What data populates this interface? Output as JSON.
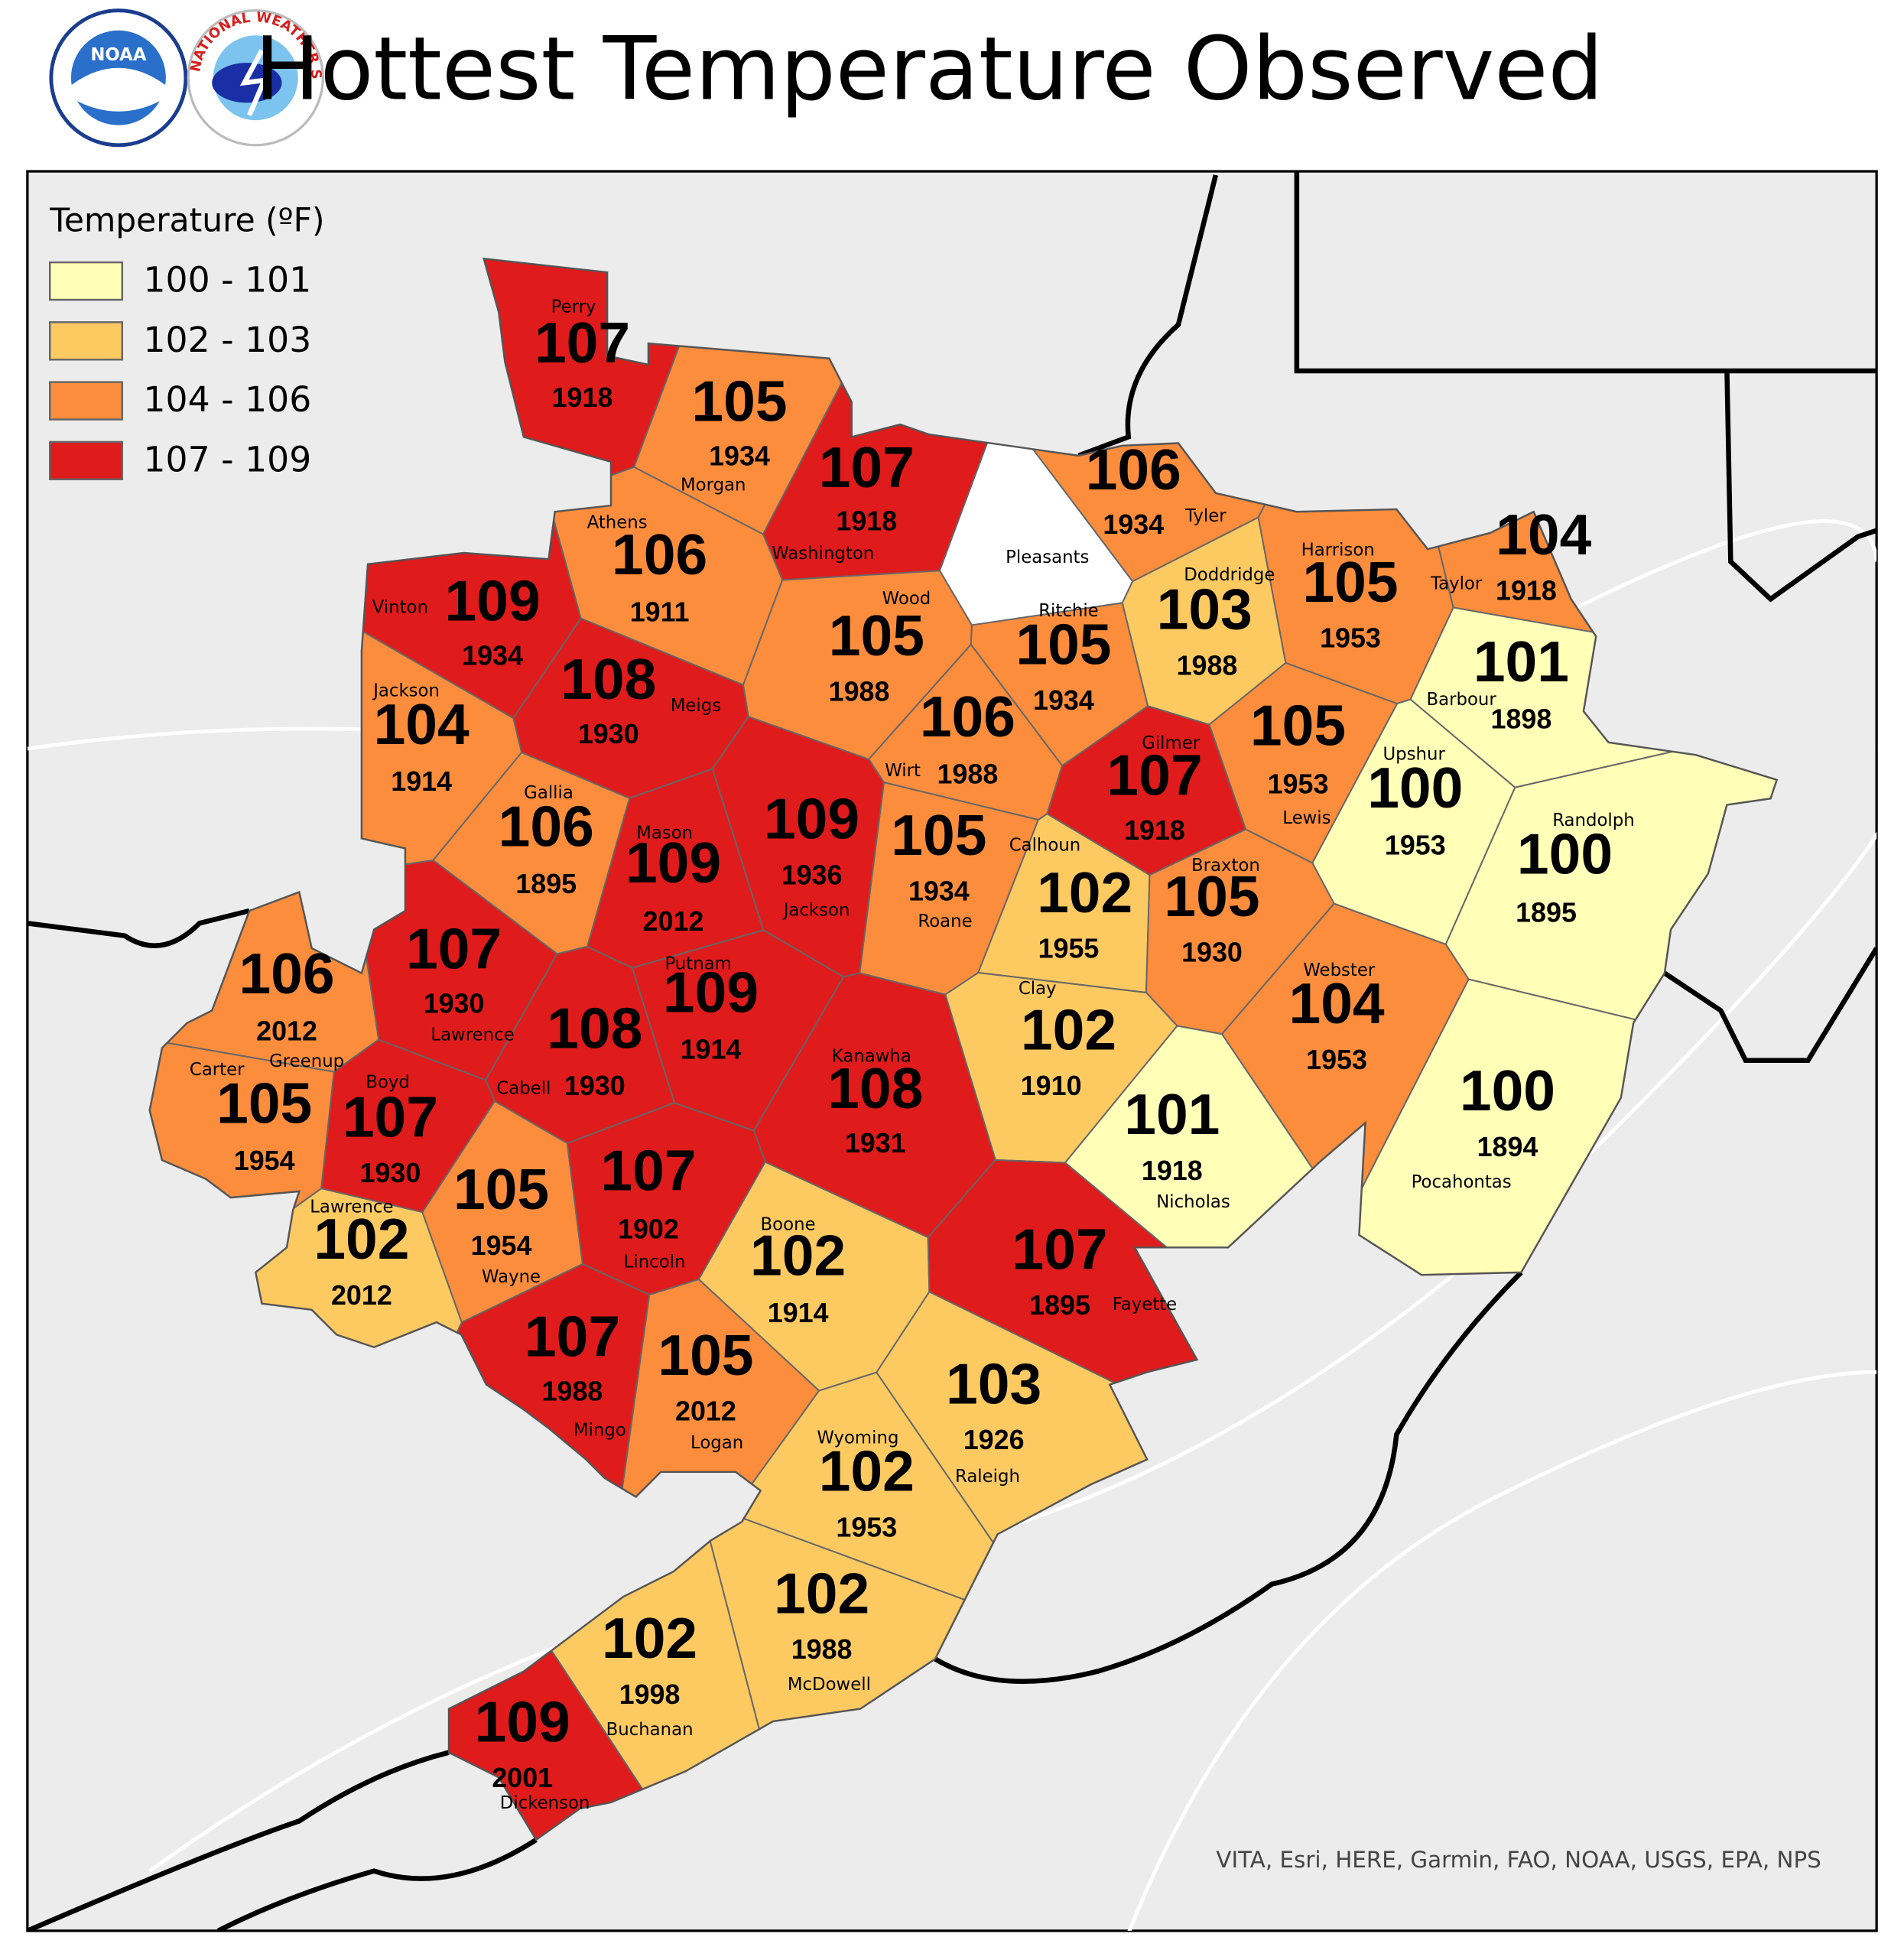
{
  "header": {
    "title": "Hottest Temperature Observed",
    "noaa_logo": "NOAA",
    "nws_logo": "NATIONAL WEATHER SERVICE"
  },
  "legend": {
    "title": "Temperature (ºF)",
    "items": [
      {
        "label": "100 - 101",
        "color": "#ffffb8"
      },
      {
        "label": "102 - 103",
        "color": "#fdca62"
      },
      {
        "label": "104 - 106",
        "color": "#fb8d3d"
      },
      {
        "label": "107 - 109",
        "color": "#e01b1c"
      }
    ]
  },
  "counties": [
    {
      "name": "Perry",
      "temperature": 107,
      "year": 1918,
      "color": "#e01b1c"
    },
    {
      "name": "Morgan",
      "temperature": 105,
      "year": 1934,
      "color": "#fb8d3d"
    },
    {
      "name": "Washington",
      "temperature": 107,
      "year": 1918,
      "color": "#e01b1c"
    },
    {
      "name": "Tyler",
      "temperature": 106,
      "year": 1934,
      "color": "#fb8d3d"
    },
    {
      "name": "Pleasants",
      "color": "#ffffff"
    },
    {
      "name": "Athens",
      "temperature": 106,
      "year": 1911,
      "color": "#fb8d3d"
    },
    {
      "name": "Vinton",
      "temperature": 109,
      "year": 1934,
      "color": "#e01b1c"
    },
    {
      "name": "Wood",
      "temperature": 105,
      "year": 1988,
      "color": "#fb8d3d"
    },
    {
      "name": "Ritchie",
      "temperature": 105,
      "year": 1934,
      "color": "#fb8d3d"
    },
    {
      "name": "Doddridge",
      "temperature": 103,
      "year": 1988,
      "color": "#fdca62"
    },
    {
      "name": "Harrison",
      "temperature": 105,
      "year": 1953,
      "color": "#fb8d3d"
    },
    {
      "name": "Taylor",
      "temperature": 104,
      "year": 1918,
      "color": "#fb8d3d"
    },
    {
      "name": "Barbour",
      "temperature": 101,
      "year": 1898,
      "color": "#ffffb8"
    },
    {
      "name": "Meigs",
      "temperature": 108,
      "year": 1930,
      "color": "#e01b1c"
    },
    {
      "name": "Jackson",
      "temperature": 104,
      "year": 1914,
      "color": "#fb8d3d"
    },
    {
      "name": "Wirt",
      "temperature": 106,
      "year": 1988,
      "color": "#fb8d3d"
    },
    {
      "name": "Gilmer",
      "temperature": 107,
      "year": 1918,
      "color": "#e01b1c"
    },
    {
      "name": "Lewis",
      "temperature": 105,
      "year": 1953,
      "color": "#fb8d3d"
    },
    {
      "name": "Upshur",
      "temperature": 100,
      "year": 1953,
      "color": "#ffffb8"
    },
    {
      "name": "Randolph",
      "temperature": 100,
      "year": 1895,
      "color": "#ffffb8"
    },
    {
      "name": "Gallia",
      "temperature": 106,
      "year": 1895,
      "color": "#fb8d3d"
    },
    {
      "name": "Mason",
      "temperature": 109,
      "year": 2012,
      "color": "#e01b1c"
    },
    {
      "name": "Jackson",
      "temperature": 109,
      "year": 1936,
      "color": "#e01b1c"
    },
    {
      "name": "Roane",
      "temperature": 105,
      "year": 1934,
      "color": "#fb8d3d"
    },
    {
      "name": "Calhoun",
      "temperature": 102,
      "year": 1955,
      "color": "#fdca62"
    },
    {
      "name": "Braxton",
      "temperature": 105,
      "year": 1930,
      "color": "#fb8d3d"
    },
    {
      "name": "Lawrence",
      "temperature": 107,
      "year": 1930,
      "color": "#e01b1c"
    },
    {
      "name": "Greenup",
      "temperature": 106,
      "year": 2012,
      "color": "#fb8d3d"
    },
    {
      "name": "Putnam",
      "temperature": 109,
      "year": 1914,
      "color": "#e01b1c"
    },
    {
      "name": "Kanawha",
      "temperature": 108,
      "year": 1931,
      "color": "#e01b1c"
    },
    {
      "name": "Webster",
      "temperature": 104,
      "year": 1953,
      "color": "#fb8d3d"
    },
    {
      "name": "Cabell",
      "temperature": 108,
      "year": 1930,
      "color": "#e01b1c"
    },
    {
      "name": "Carter",
      "temperature": 105,
      "year": 1954,
      "color": "#fb8d3d"
    },
    {
      "name": "Boyd",
      "temperature": 107,
      "year": 1930,
      "color": "#e01b1c"
    },
    {
      "name": "Clay",
      "temperature": 102,
      "year": 1910,
      "color": "#fdca62"
    },
    {
      "name": "Nicholas",
      "temperature": 101,
      "year": 1918,
      "color": "#ffffb8"
    },
    {
      "name": "Pocahontas",
      "temperature": 100,
      "year": 1894,
      "color": "#ffffb8"
    },
    {
      "name": "Lincoln",
      "temperature": 107,
      "year": 1902,
      "color": "#e01b1c"
    },
    {
      "name": "Lawrence",
      "temperature": 102,
      "year": 2012,
      "color": "#fdca62"
    },
    {
      "name": "Wayne",
      "temperature": 105,
      "year": 1954,
      "color": "#fb8d3d"
    },
    {
      "name": "Boone",
      "temperature": 102,
      "year": 1914,
      "color": "#fdca62"
    },
    {
      "name": "Fayette",
      "temperature": 107,
      "year": 1895,
      "color": "#e01b1c"
    },
    {
      "name": "Mingo",
      "temperature": 107,
      "year": 1988,
      "color": "#e01b1c"
    },
    {
      "name": "Logan",
      "temperature": 105,
      "year": 2012,
      "color": "#fb8d3d"
    },
    {
      "name": "Raleigh",
      "temperature": 103,
      "year": 1926,
      "color": "#fdca62"
    },
    {
      "name": "Wyoming",
      "temperature": 102,
      "year": 1953,
      "color": "#fdca62"
    },
    {
      "name": "McDowell",
      "temperature": 102,
      "year": 1988,
      "color": "#fdca62"
    },
    {
      "name": "Buchanan",
      "temperature": 102,
      "year": 1998,
      "color": "#fdca62"
    },
    {
      "name": "Dickenson",
      "temperature": 109,
      "year": 2001,
      "color": "#e01b1c"
    }
  ],
  "credit": "VITA, Esri, HERE, Garmin, FAO, NOAA, USGS, EPA, NPS"
}
